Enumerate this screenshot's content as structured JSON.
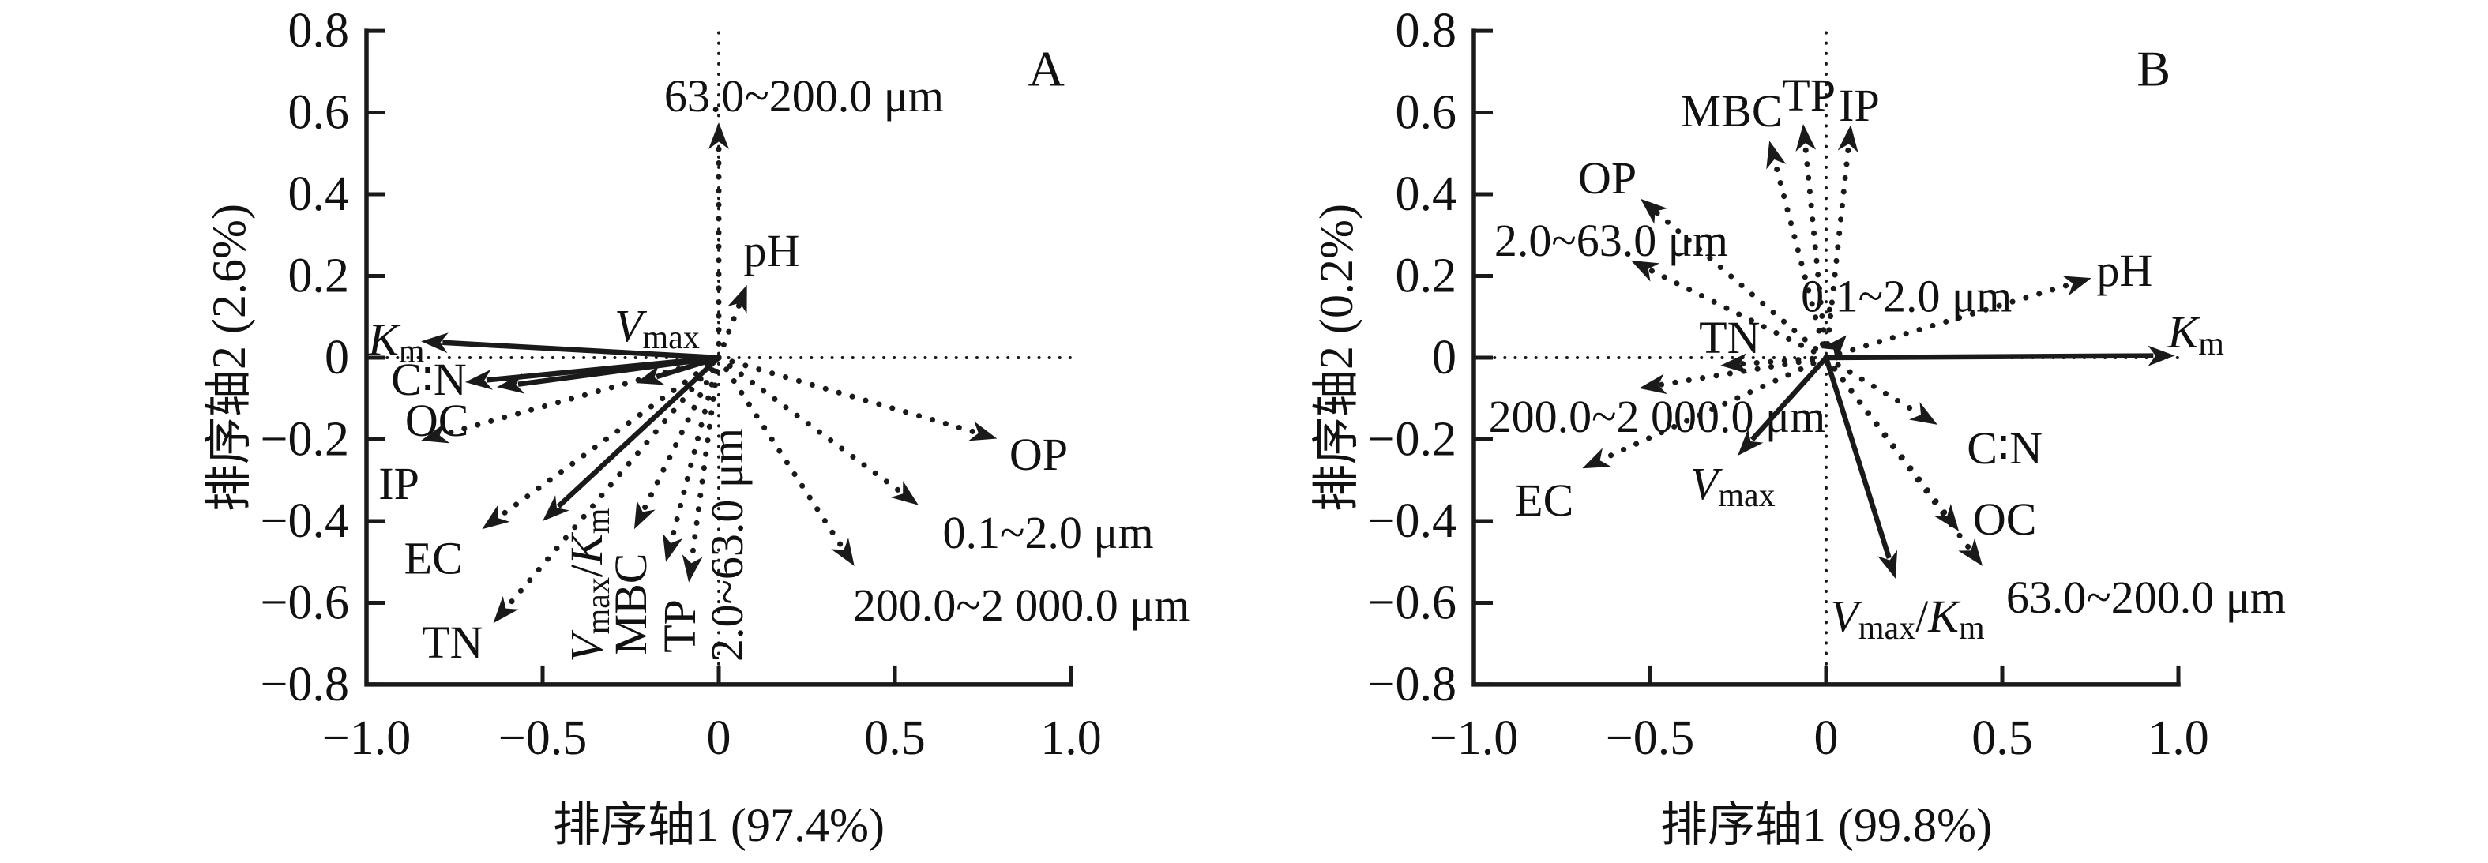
{
  "figure": {
    "background": "#ffffff",
    "ink": "#1a1a1a",
    "description": "Two redundancy-analysis (RDA) biplots, panels A and B, arrows for soil and enzyme-kinetics variables"
  },
  "chart_data": [
    {
      "type": "biplot",
      "panel": "A",
      "axes": {
        "xlabel": "排序轴1 (97.4%)",
        "ylabel": "排序轴2 (2.6%)",
        "xlim": [
          -1.0,
          1.0
        ],
        "ylim": [
          -0.8,
          0.8
        ],
        "grid": false,
        "reference_lines": {
          "vertical_x": 0,
          "horizontal_y": 0,
          "style": "dotted"
        },
        "xticks": [
          {
            "v": -1.0,
            "label": "−1.0"
          },
          {
            "v": -0.5,
            "label": "−0.5"
          },
          {
            "v": 0.0,
            "label": "0"
          },
          {
            "v": 0.5,
            "label": "0.5"
          },
          {
            "v": 1.0,
            "label": "1.0"
          }
        ],
        "yticks": [
          {
            "v": 0.8,
            "label": "0.8"
          },
          {
            "v": 0.6,
            "label": "0.6"
          },
          {
            "v": 0.4,
            "label": "0.4"
          },
          {
            "v": 0.2,
            "label": "0.2"
          },
          {
            "v": 0.0,
            "label": "0"
          },
          {
            "v": -0.2,
            "label": "−0.2"
          },
          {
            "v": -0.4,
            "label": "−0.4"
          },
          {
            "v": -0.6,
            "label": "−0.6"
          },
          {
            "v": -0.8,
            "label": "−0.8"
          }
        ]
      },
      "arrows": [
        {
          "name": "Km",
          "style": "solid",
          "x": -0.845,
          "y": 0.04,
          "label": {
            "x": -0.915,
            "y": 0.045,
            "rot": 0,
            "segments": [
              [
                "K",
                "i"
              ],
              [
                "m",
                "s"
              ]
            ]
          }
        },
        {
          "name": "Vmax",
          "style": "solid",
          "x": -0.235,
          "y": -0.062,
          "label": {
            "x": -0.175,
            "y": 0.079,
            "rot": 0,
            "segments": [
              [
                "V",
                "i"
              ],
              [
                "max",
                "s"
              ]
            ]
          }
        },
        {
          "name": "C:N",
          "style": "solid",
          "x": -0.72,
          "y": -0.06,
          "label": {
            "x": -0.823,
            "y": -0.052,
            "rot": 0,
            "segments": [
              [
                "C∶N",
                "n"
              ]
            ]
          }
        },
        {
          "name": "OC",
          "style": "solid",
          "x": -0.63,
          "y": -0.072,
          "label": {
            "x": -0.8,
            "y": -0.153,
            "rot": 0,
            "segments": [
              [
                "OC",
                "n"
              ]
            ]
          }
        },
        {
          "name": "IP",
          "style": "dotted",
          "x": -0.845,
          "y": -0.203,
          "label": {
            "x": -0.908,
            "y": -0.307,
            "rot": 0,
            "segments": [
              [
                "IP",
                "n"
              ]
            ]
          }
        },
        {
          "name": "EC",
          "style": "dotted",
          "x": -0.672,
          "y": -0.42,
          "label": {
            "x": -0.81,
            "y": -0.49,
            "rot": 0,
            "segments": [
              [
                "EC",
                "n"
              ]
            ]
          }
        },
        {
          "name": "TN",
          "style": "dotted",
          "x": -0.64,
          "y": -0.65,
          "label": {
            "x": -0.756,
            "y": -0.696,
            "rot": 0,
            "segments": [
              [
                "TN",
                "n"
              ]
            ]
          }
        },
        {
          "name": "Vmax/Km",
          "style": "solid",
          "x": -0.5,
          "y": -0.4,
          "label": {
            "x": -0.377,
            "y": -0.557,
            "rot": -90,
            "segments": [
              [
                "V",
                "i"
              ],
              [
                "max",
                "s"
              ],
              [
                "/",
                "n"
              ],
              [
                "K",
                "i"
              ],
              [
                "m",
                "s"
              ]
            ]
          }
        },
        {
          "name": "MBC",
          "style": "dotted",
          "x": -0.24,
          "y": -0.42,
          "label": {
            "x": -0.251,
            "y": -0.603,
            "rot": -90,
            "segments": [
              [
                "MBC",
                "n"
              ]
            ]
          }
        },
        {
          "name": "TP",
          "style": "dotted",
          "x": -0.15,
          "y": -0.5,
          "label": {
            "x": -0.112,
            "y": -0.657,
            "rot": -90,
            "segments": [
              [
                "TP",
                "n"
              ]
            ]
          }
        },
        {
          "name": "2.0~63.0 um",
          "style": "dotted",
          "x": -0.085,
          "y": -0.55,
          "label": {
            "x": 0.022,
            "y": -0.458,
            "rot": -90,
            "segments": [
              [
                "2.0~63.0 μm",
                "n"
              ]
            ]
          }
        },
        {
          "name": "63.0~200.0 um",
          "style": "dotted",
          "x": 0.0,
          "y": 0.576,
          "label": {
            "x": 0.242,
            "y": 0.642,
            "rot": 0,
            "segments": [
              [
                "63.0~200.0 μm",
                "n"
              ]
            ]
          }
        },
        {
          "name": "pH",
          "style": "dotted",
          "x": 0.08,
          "y": 0.178,
          "label": {
            "x": 0.15,
            "y": 0.263,
            "rot": 0,
            "segments": [
              [
                "pH",
                "n"
              ]
            ]
          }
        },
        {
          "name": "OP",
          "style": "dotted",
          "x": 0.79,
          "y": -0.198,
          "label": {
            "x": 0.908,
            "y": -0.236,
            "rot": 0,
            "segments": [
              [
                "OP",
                "n"
              ]
            ]
          }
        },
        {
          "name": "0.1~2.0 um",
          "style": "dotted",
          "x": 0.567,
          "y": -0.361,
          "label": {
            "x": 0.935,
            "y": -0.427,
            "rot": 0,
            "segments": [
              [
                "0.1~2.0 μm",
                "n"
              ]
            ]
          }
        },
        {
          "name": "200.0~2000.0 um",
          "style": "dotted",
          "x": 0.385,
          "y": -0.51,
          "label": {
            "x": 0.859,
            "y": -0.605,
            "rot": 0,
            "segments": [
              [
                "200.0~2 000.0 μm",
                "n"
              ]
            ]
          }
        }
      ]
    },
    {
      "type": "biplot",
      "panel": "B",
      "axes": {
        "xlabel": "排序轴1 (99.8%)",
        "ylabel": "排序轴2 (0.2%)",
        "xlim": [
          -1.0,
          1.0
        ],
        "ylim": [
          -0.8,
          0.8
        ],
        "grid": false,
        "reference_lines": {
          "vertical_x": 0,
          "horizontal_y": 0,
          "style": "dotted"
        },
        "xticks": [
          {
            "v": -1.0,
            "label": "−1.0"
          },
          {
            "v": -0.5,
            "label": "−0.5"
          },
          {
            "v": 0.0,
            "label": "0"
          },
          {
            "v": 0.5,
            "label": "0.5"
          },
          {
            "v": 1.0,
            "label": "1.0"
          }
        ],
        "yticks": [
          {
            "v": 0.8,
            "label": "0.8"
          },
          {
            "v": 0.6,
            "label": "0.6"
          },
          {
            "v": 0.4,
            "label": "0.4"
          },
          {
            "v": 0.2,
            "label": "0.2"
          },
          {
            "v": 0.0,
            "label": "0"
          },
          {
            "v": -0.2,
            "label": "−0.2"
          },
          {
            "v": -0.4,
            "label": "−0.4"
          },
          {
            "v": -0.6,
            "label": "−0.6"
          },
          {
            "v": -0.8,
            "label": "−0.8"
          }
        ]
      },
      "arrows": [
        {
          "name": "Km",
          "style": "solid",
          "x": 0.99,
          "y": 0.005,
          "label": {
            "x": 1.05,
            "y": 0.064,
            "rot": 0,
            "segments": [
              [
                "K",
                "i"
              ],
              [
                "m",
                "s"
              ]
            ]
          }
        },
        {
          "name": "pH",
          "style": "dotted",
          "x": 0.753,
          "y": 0.195,
          "label": {
            "x": 0.847,
            "y": 0.215,
            "rot": 0,
            "segments": [
              [
                "pH",
                "n"
              ]
            ]
          }
        },
        {
          "name": "0.1~2.0 um",
          "style": "dotted",
          "x": 0.058,
          "y": 0.055,
          "label": {
            "x": 0.228,
            "y": 0.152,
            "rot": 0,
            "segments": [
              [
                "0.1~2.0 μm",
                "n"
              ]
            ]
          }
        },
        {
          "name": "IP",
          "style": "dotted",
          "x": 0.07,
          "y": 0.57,
          "label": {
            "x": 0.094,
            "y": 0.618,
            "rot": 0,
            "segments": [
              [
                "IP",
                "n"
              ]
            ]
          }
        },
        {
          "name": "TP",
          "style": "dotted",
          "x": -0.065,
          "y": 0.572,
          "label": {
            "x": -0.049,
            "y": 0.644,
            "rot": 0,
            "segments": [
              [
                "TP",
                "n"
              ]
            ]
          }
        },
        {
          "name": "MBC",
          "style": "dotted",
          "x": -0.161,
          "y": 0.531,
          "label": {
            "x": -0.269,
            "y": 0.605,
            "rot": 0,
            "segments": [
              [
                "MBC",
                "n"
              ]
            ]
          }
        },
        {
          "name": "OP",
          "style": "dotted",
          "x": -0.527,
          "y": 0.389,
          "label": {
            "x": -0.621,
            "y": 0.441,
            "rot": 0,
            "segments": [
              [
                "OP",
                "n"
              ]
            ]
          }
        },
        {
          "name": "2.0~63.0 um",
          "style": "dotted",
          "x": -0.554,
          "y": 0.238,
          "label": {
            "x": -0.61,
            "y": 0.288,
            "rot": 0,
            "segments": [
              [
                "2.0~63.0 μm",
                "n"
              ]
            ]
          }
        },
        {
          "name": "TN",
          "style": "dotted",
          "x": -0.3,
          "y": -0.019,
          "label": {
            "x": -0.274,
            "y": 0.05,
            "rot": 0,
            "segments": [
              [
                "TN",
                "n"
              ]
            ]
          }
        },
        {
          "name": "200.0~2000.0 um",
          "style": "dotted",
          "x": -0.531,
          "y": -0.075,
          "label": {
            "x": -0.48,
            "y": -0.143,
            "rot": 0,
            "segments": [
              [
                "200.0~2 000.0 μm",
                "n"
              ]
            ]
          }
        },
        {
          "name": "EC",
          "style": "dotted",
          "x": -0.692,
          "y": -0.271,
          "label": {
            "x": -0.8,
            "y": -0.348,
            "rot": 0,
            "segments": [
              [
                "EC",
                "n"
              ]
            ]
          }
        },
        {
          "name": "Vmax",
          "style": "solid",
          "x": -0.251,
          "y": -0.24,
          "label": {
            "x": -0.265,
            "y": -0.307,
            "rot": 0,
            "segments": [
              [
                "V",
                "i"
              ],
              [
                "max",
                "s"
              ]
            ]
          }
        },
        {
          "name": "Vmax/Km",
          "style": "solid",
          "x": 0.197,
          "y": -0.541,
          "label": {
            "x": 0.231,
            "y": -0.632,
            "rot": 0,
            "segments": [
              [
                "V",
                "i"
              ],
              [
                "max",
                "s"
              ],
              [
                "/",
                "n"
              ],
              [
                "K",
                "i"
              ],
              [
                "m",
                "s"
              ]
            ]
          }
        },
        {
          "name": "C:N",
          "style": "dotted",
          "x": 0.316,
          "y": -0.164,
          "label": {
            "x": 0.507,
            "y": -0.22,
            "rot": 0,
            "segments": [
              [
                "C∶N",
                "n"
              ]
            ]
          }
        },
        {
          "name": "OC",
          "style": "dotted",
          "x": 0.377,
          "y": -0.425,
          "label": {
            "x": 0.507,
            "y": -0.394,
            "rot": 0,
            "segments": [
              [
                "OC",
                "n"
              ]
            ]
          }
        },
        {
          "name": "63.0~200.0 um",
          "style": "dotted",
          "x": 0.444,
          "y": -0.51,
          "label": {
            "x": 0.908,
            "y": -0.586,
            "rot": 0,
            "segments": [
              [
                "63.0~200.0 μm",
                "n"
              ]
            ]
          }
        }
      ]
    }
  ]
}
